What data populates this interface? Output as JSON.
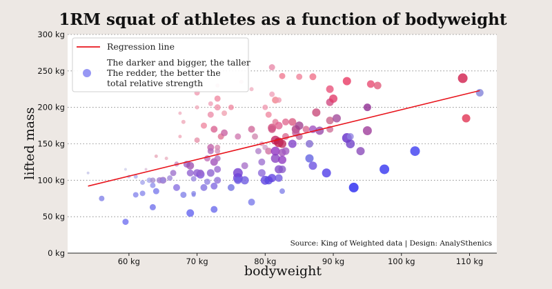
{
  "chart_data": {
    "type": "scatter",
    "title": "1RM squat of athletes as a function of bodyweight",
    "xlabel": "bodyweight",
    "ylabel": "lifted mass",
    "xlim": [
      51,
      114
    ],
    "ylim": [
      0,
      300
    ],
    "xticks": [
      60,
      70,
      80,
      90,
      100,
      110
    ],
    "yticks": [
      0,
      50,
      100,
      150,
      200,
      250,
      300
    ],
    "xtick_labels": [
      "60 kg",
      "70 kg",
      "80 kg",
      "90 kg",
      "100 kg",
      "110 kg"
    ],
    "ytick_labels": [
      "0 kg",
      "50 kg",
      "100 kg",
      "150 kg",
      "200 kg",
      "250 kg",
      "300 kg"
    ],
    "grid": "horizontal dotted",
    "legend": {
      "placement": "top-left",
      "line_label": "Regression line",
      "marker_label_lines": [
        "The darker and bigger, the taller",
        "The redder, the better the",
        "total relative strength"
      ]
    },
    "source_note": "Source: King of Weighted data  |  Design: AnalySthenics",
    "regression": {
      "x": [
        54,
        111.5
      ],
      "y": [
        92,
        223
      ],
      "color": "#e8141c"
    },
    "points": [
      {
        "x": 54,
        "y": 110,
        "r": 2,
        "c": "#c4c4e8"
      },
      {
        "x": 56,
        "y": 75,
        "r": 4,
        "c": "#8080e8"
      },
      {
        "x": 59.5,
        "y": 115,
        "r": 2,
        "c": "#d0d0ec"
      },
      {
        "x": 59.5,
        "y": 43,
        "r": 4.5,
        "c": "#6e6ef0"
      },
      {
        "x": 60,
        "y": 105,
        "r": 2.5,
        "c": "#c0c0ec"
      },
      {
        "x": 61,
        "y": 105,
        "r": 3,
        "c": "#b0b0ec"
      },
      {
        "x": 61,
        "y": 80,
        "r": 4,
        "c": "#8484ec"
      },
      {
        "x": 62,
        "y": 97,
        "r": 3.5,
        "c": "#a4a4ec"
      },
      {
        "x": 62,
        "y": 82,
        "r": 4,
        "c": "#8888ec"
      },
      {
        "x": 62.5,
        "y": 115,
        "r": 2,
        "c": "#dcc0d8"
      },
      {
        "x": 63,
        "y": 100,
        "r": 4,
        "c": "#a8a8ec"
      },
      {
        "x": 63.5,
        "y": 63,
        "r": 4.5,
        "c": "#7070ec"
      },
      {
        "x": 63.5,
        "y": 100,
        "r": 4,
        "c": "#a48cd0"
      },
      {
        "x": 63.5,
        "y": 93,
        "r": 4,
        "c": "#9090ec"
      },
      {
        "x": 64,
        "y": 133,
        "r": 2.5,
        "c": "#e8a8b8"
      },
      {
        "x": 64,
        "y": 85,
        "r": 4.5,
        "c": "#7878ec"
      },
      {
        "x": 64.5,
        "y": 100,
        "r": 4.5,
        "c": "#9c7cd0"
      },
      {
        "x": 65,
        "y": 100,
        "r": 5,
        "c": "#a06cc0"
      },
      {
        "x": 65,
        "y": 100,
        "r": 4,
        "c": "#9a8ae0"
      },
      {
        "x": 65.5,
        "y": 130,
        "r": 2.5,
        "c": "#eab0c0"
      },
      {
        "x": 66,
        "y": 103,
        "r": 4,
        "c": "#a088d8"
      },
      {
        "x": 66.5,
        "y": 110,
        "r": 4.5,
        "c": "#9c70cc"
      },
      {
        "x": 67,
        "y": 123,
        "r": 3,
        "c": "#e0a0b8"
      },
      {
        "x": 67,
        "y": 90,
        "r": 5,
        "c": "#8870e0"
      },
      {
        "x": 67,
        "y": 122,
        "r": 3.5,
        "c": "#ce9ccc"
      },
      {
        "x": 67.5,
        "y": 160,
        "r": 2.5,
        "c": "#f0a8b8"
      },
      {
        "x": 67.5,
        "y": 192,
        "r": 2.5,
        "c": "#f0b0c0"
      },
      {
        "x": 68,
        "y": 80,
        "r": 4.5,
        "c": "#8080e8"
      },
      {
        "x": 68,
        "y": 180,
        "r": 3,
        "c": "#eea8b8"
      },
      {
        "x": 68.5,
        "y": 122,
        "r": 5,
        "c": "#a060c0"
      },
      {
        "x": 69,
        "y": 120,
        "r": 5.5,
        "c": "#9c50b0"
      },
      {
        "x": 69,
        "y": 110,
        "r": 5,
        "c": "#9060d0"
      },
      {
        "x": 69,
        "y": 55,
        "r": 5.5,
        "c": "#6060f0"
      },
      {
        "x": 69.5,
        "y": 102,
        "r": 4,
        "c": "#9888e0"
      },
      {
        "x": 69.5,
        "y": 82,
        "r": 3.5,
        "c": "#8c8ce8"
      },
      {
        "x": 69.5,
        "y": 80,
        "r": 3,
        "c": "#8888e8"
      },
      {
        "x": 70,
        "y": 200,
        "r": 3,
        "c": "#f0a8b8"
      },
      {
        "x": 70,
        "y": 155,
        "r": 4,
        "c": "#e690a8"
      },
      {
        "x": 70,
        "y": 110,
        "r": 5.5,
        "c": "#8c58d0"
      },
      {
        "x": 70,
        "y": 220,
        "r": 4,
        "c": "#f098b0"
      },
      {
        "x": 70.5,
        "y": 108,
        "r": 6,
        "c": "#7c50d8"
      },
      {
        "x": 70.5,
        "y": 110,
        "r": 5,
        "c": "#9868d0"
      },
      {
        "x": 71,
        "y": 175,
        "r": 4.5,
        "c": "#ee88a0"
      },
      {
        "x": 71,
        "y": 90,
        "r": 5,
        "c": "#8070e0"
      },
      {
        "x": 71.5,
        "y": 98,
        "r": 4.5,
        "c": "#9080e0"
      },
      {
        "x": 71.5,
        "y": 130,
        "r": 4.5,
        "c": "#c070b8"
      },
      {
        "x": 72,
        "y": 205,
        "r": 3.5,
        "c": "#f0a0b8"
      },
      {
        "x": 72,
        "y": 145,
        "r": 5,
        "c": "#c060a8"
      },
      {
        "x": 72,
        "y": 140,
        "r": 4.5,
        "c": "#b068b8"
      },
      {
        "x": 72,
        "y": 190,
        "r": 4.5,
        "c": "#ec8ca8"
      },
      {
        "x": 72,
        "y": 110,
        "r": 5.5,
        "c": "#8c60d0"
      },
      {
        "x": 72.5,
        "y": 125,
        "r": 5.5,
        "c": "#a050b8"
      },
      {
        "x": 72.5,
        "y": 92,
        "r": 5,
        "c": "#8068e0"
      },
      {
        "x": 72.5,
        "y": 60,
        "r": 5,
        "c": "#6868ec"
      },
      {
        "x": 72.5,
        "y": 170,
        "r": 5,
        "c": "#d86090"
      },
      {
        "x": 73,
        "y": 212,
        "r": 4.5,
        "c": "#f088a0"
      },
      {
        "x": 73,
        "y": 200,
        "r": 4.5,
        "c": "#f090a8"
      },
      {
        "x": 73,
        "y": 230,
        "r": 3,
        "c": "#f0b0c0"
      },
      {
        "x": 73,
        "y": 145,
        "r": 4,
        "c": "#d888b0"
      },
      {
        "x": 73,
        "y": 140,
        "r": 4,
        "c": "#d090b8"
      },
      {
        "x": 73,
        "y": 130,
        "r": 4.5,
        "c": "#b070c0"
      },
      {
        "x": 73,
        "y": 100,
        "r": 5,
        "c": "#9070d8"
      },
      {
        "x": 73,
        "y": 115,
        "r": 5,
        "c": "#9868d0"
      },
      {
        "x": 73.5,
        "y": 160,
        "r": 4.5,
        "c": "#e07090"
      },
      {
        "x": 74,
        "y": 165,
        "r": 5,
        "c": "#c860a0"
      },
      {
        "x": 74,
        "y": 192,
        "r": 4,
        "c": "#f0a0b0"
      },
      {
        "x": 75,
        "y": 200,
        "r": 4,
        "c": "#f088a0"
      },
      {
        "x": 75,
        "y": 90,
        "r": 5,
        "c": "#7070e0"
      },
      {
        "x": 76,
        "y": 160,
        "r": 4.5,
        "c": "#d078b0"
      },
      {
        "x": 76,
        "y": 110,
        "r": 7,
        "c": "#7038d0"
      },
      {
        "x": 76,
        "y": 103,
        "r": 7,
        "c": "#6c40d8"
      },
      {
        "x": 76,
        "y": 100,
        "r": 5.5,
        "c": "#7060e0"
      },
      {
        "x": 76.5,
        "y": 235,
        "r": 3,
        "c": "#f0b8c8"
      },
      {
        "x": 77,
        "y": 120,
        "r": 5,
        "c": "#a870c8"
      },
      {
        "x": 77,
        "y": 100,
        "r": 6,
        "c": "#6c58e0"
      },
      {
        "x": 78,
        "y": 225,
        "r": 3,
        "c": "#f0b0c0"
      },
      {
        "x": 78,
        "y": 170,
        "r": 5,
        "c": "#d06898"
      },
      {
        "x": 78,
        "y": 70,
        "r": 5,
        "c": "#7878ea"
      },
      {
        "x": 78.5,
        "y": 160,
        "r": 4.5,
        "c": "#d088b0"
      },
      {
        "x": 79,
        "y": 140,
        "r": 4.5,
        "c": "#b080c8"
      },
      {
        "x": 79.5,
        "y": 150,
        "r": 3.5,
        "c": "#e0a0c0"
      },
      {
        "x": 79.5,
        "y": 110,
        "r": 5.5,
        "c": "#8c68d8"
      },
      {
        "x": 79.5,
        "y": 125,
        "r": 5,
        "c": "#9c70d0"
      },
      {
        "x": 80,
        "y": 200,
        "r": 4,
        "c": "#f098b0"
      },
      {
        "x": 80,
        "y": 100,
        "r": 6.5,
        "c": "#5c40e0"
      },
      {
        "x": 80,
        "y": 145,
        "r": 4,
        "c": "#d0a0c8"
      },
      {
        "x": 80.5,
        "y": 190,
        "r": 4.5,
        "c": "#f088a0"
      },
      {
        "x": 80.5,
        "y": 140,
        "r": 5,
        "c": "#d070a0"
      },
      {
        "x": 80.5,
        "y": 100,
        "r": 6,
        "c": "#5848e0"
      },
      {
        "x": 81,
        "y": 255,
        "r": 4.5,
        "c": "#e888a8"
      },
      {
        "x": 81,
        "y": 218,
        "r": 4,
        "c": "#f0a0b8"
      },
      {
        "x": 81,
        "y": 172,
        "r": 6,
        "c": "#d04878"
      },
      {
        "x": 81,
        "y": 170,
        "r": 5.5,
        "c": "#d05888"
      },
      {
        "x": 81,
        "y": 103,
        "r": 6,
        "c": "#6040e0"
      },
      {
        "x": 81.5,
        "y": 210,
        "r": 5,
        "c": "#f0808c"
      },
      {
        "x": 81.5,
        "y": 180,
        "r": 4.5,
        "c": "#e47898"
      },
      {
        "x": 81.5,
        "y": 155,
        "r": 6.5,
        "c": "#c02060"
      },
      {
        "x": 81.5,
        "y": 140,
        "r": 6.5,
        "c": "#9030c0"
      },
      {
        "x": 81.5,
        "y": 130,
        "r": 6.5,
        "c": "#8840c0"
      },
      {
        "x": 82,
        "y": 210,
        "r": 4,
        "c": "#f098b0"
      },
      {
        "x": 82,
        "y": 175,
        "r": 5.5,
        "c": "#e06090"
      },
      {
        "x": 82,
        "y": 152,
        "r": 7,
        "c": "#c01848"
      },
      {
        "x": 82,
        "y": 115,
        "r": 6,
        "c": "#8048c8"
      },
      {
        "x": 82,
        "y": 103,
        "r": 5.5,
        "c": "#7058e0"
      },
      {
        "x": 82.5,
        "y": 243,
        "r": 4.5,
        "c": "#f07890"
      },
      {
        "x": 82.5,
        "y": 150,
        "r": 6,
        "c": "#c02858"
      },
      {
        "x": 82.5,
        "y": 138,
        "r": 5.5,
        "c": "#a050b8"
      },
      {
        "x": 82.5,
        "y": 128,
        "r": 6,
        "c": "#9038c0"
      },
      {
        "x": 82.5,
        "y": 85,
        "r": 4,
        "c": "#8080e8"
      },
      {
        "x": 82.5,
        "y": 115,
        "r": 5.5,
        "c": "#8858c8"
      },
      {
        "x": 83,
        "y": 180,
        "r": 5,
        "c": "#e06890"
      },
      {
        "x": 83,
        "y": 160,
        "r": 5,
        "c": "#d86890"
      },
      {
        "x": 83,
        "y": 140,
        "r": 5.5,
        "c": "#a058c0"
      },
      {
        "x": 84,
        "y": 180,
        "r": 5.5,
        "c": "#d85880"
      },
      {
        "x": 84,
        "y": 150,
        "r": 6,
        "c": "#8040c8"
      },
      {
        "x": 84.5,
        "y": 170,
        "r": 6,
        "c": "#b03880"
      },
      {
        "x": 84.5,
        "y": 165,
        "r": 5.5,
        "c": "#c05898"
      },
      {
        "x": 85,
        "y": 175,
        "r": 6,
        "c": "#a04090"
      },
      {
        "x": 85,
        "y": 242,
        "r": 4.5,
        "c": "#f08098"
      },
      {
        "x": 85,
        "y": 160,
        "r": 5,
        "c": "#c068a0"
      },
      {
        "x": 86,
        "y": 170,
        "r": 5,
        "c": "#d86890"
      },
      {
        "x": 86.5,
        "y": 150,
        "r": 5.5,
        "c": "#8068d0"
      },
      {
        "x": 86.5,
        "y": 130,
        "r": 6,
        "c": "#6060e0"
      },
      {
        "x": 87,
        "y": 242,
        "r": 5,
        "c": "#f07088"
      },
      {
        "x": 87,
        "y": 120,
        "r": 6,
        "c": "#6a50e0"
      },
      {
        "x": 87,
        "y": 170,
        "r": 5.5,
        "c": "#a050c0"
      },
      {
        "x": 87.5,
        "y": 193,
        "r": 6,
        "c": "#c84878"
      },
      {
        "x": 88,
        "y": 168,
        "r": 6,
        "c": "#9848a8"
      },
      {
        "x": 89,
        "y": 110,
        "r": 6.5,
        "c": "#4c38e8"
      },
      {
        "x": 89.5,
        "y": 207,
        "r": 5.5,
        "c": "#d04880"
      },
      {
        "x": 89.5,
        "y": 182,
        "r": 5.5,
        "c": "#c86088"
      },
      {
        "x": 89.5,
        "y": 170,
        "r": 5,
        "c": "#d07098"
      },
      {
        "x": 89.5,
        "y": 225,
        "r": 5.5,
        "c": "#e85078"
      },
      {
        "x": 90,
        "y": 212,
        "r": 6,
        "c": "#e03868"
      },
      {
        "x": 90.5,
        "y": 185,
        "r": 6,
        "c": "#a04898"
      },
      {
        "x": 92,
        "y": 236,
        "r": 6,
        "c": "#e83460"
      },
      {
        "x": 92,
        "y": 158,
        "r": 7,
        "c": "#6028c8"
      },
      {
        "x": 92.5,
        "y": 150,
        "r": 6.5,
        "c": "#7040c8"
      },
      {
        "x": 92.5,
        "y": 160,
        "r": 5,
        "c": "#9080e0"
      },
      {
        "x": 93,
        "y": 90,
        "r": 7,
        "c": "#2020f0"
      },
      {
        "x": 94,
        "y": 140,
        "r": 6,
        "c": "#8848b8"
      },
      {
        "x": 95,
        "y": 200,
        "r": 5.5,
        "c": "#8c2890"
      },
      {
        "x": 95,
        "y": 168,
        "r": 6.5,
        "c": "#9c3898"
      },
      {
        "x": 95.5,
        "y": 232,
        "r": 5.5,
        "c": "#e84870"
      },
      {
        "x": 96.5,
        "y": 230,
        "r": 5.5,
        "c": "#e05878"
      },
      {
        "x": 97.5,
        "y": 115,
        "r": 7,
        "c": "#3030f0"
      },
      {
        "x": 102,
        "y": 140,
        "r": 7,
        "c": "#3838f0"
      },
      {
        "x": 109,
        "y": 240,
        "r": 7,
        "c": "#d01848"
      },
      {
        "x": 109.5,
        "y": 185,
        "r": 6,
        "c": "#e03050"
      },
      {
        "x": 111.5,
        "y": 220,
        "r": 5.5,
        "c": "#8080d8"
      }
    ]
  }
}
